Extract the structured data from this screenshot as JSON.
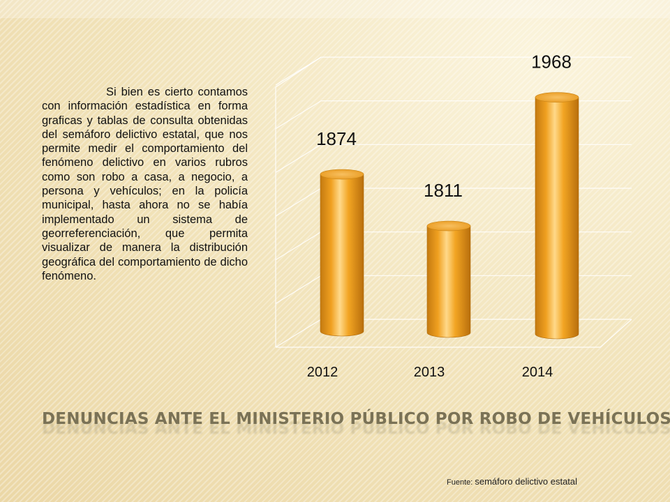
{
  "slide": {
    "body_text": "Si bien es cierto contamos con información estadística en forma graficas y tablas de consulta obtenidas del semáforo delictivo estatal, que nos permite medir el comportamiento del fenómeno delictivo en varios rubros como son robo a casa, a negocio, a persona y vehículos; en la policía municipal, hasta ahora no se había implementado un sistema de georreferenciación, que permita visualizar de manera la distribución geográfica del comportamiento de dicho fenómeno.",
    "title": "DENUNCIAS ANTE EL MINISTERIO  PÚBLICO POR ROBO DE VEHÍCULOS",
    "source_label": "Fuente: ",
    "source_value": "semáforo delictivo estatal"
  },
  "chart_data": {
    "type": "bar",
    "style": "3d-cylinder",
    "categories": [
      "2012",
      "2013",
      "2014"
    ],
    "values": [
      1874,
      1811,
      1968
    ],
    "data_labels": [
      "1874",
      "1811",
      "1968"
    ],
    "title": "",
    "xlabel": "",
    "ylabel": "",
    "ylim": [
      1680,
      2000
    ],
    "grid": true,
    "legend": "none",
    "bar_color": "#f0a020",
    "bar_color_dark": "#c47a10"
  }
}
